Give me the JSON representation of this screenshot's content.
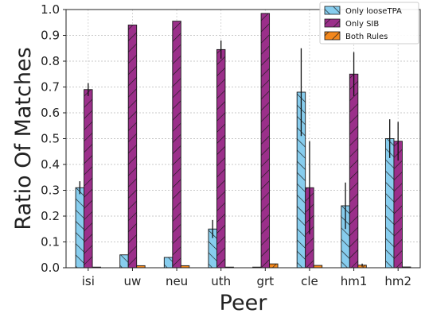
{
  "chart_data": {
    "type": "bar",
    "xlabel": "Peer",
    "ylabel": "Ratio Of Matches",
    "ylim": [
      0,
      1.0
    ],
    "yticks": [
      "0.0",
      "0.1",
      "0.2",
      "0.3",
      "0.4",
      "0.5",
      "0.6",
      "0.7",
      "0.8",
      "0.9",
      "1.0"
    ],
    "grid": true,
    "legend_position": "top-right",
    "categories": [
      "isi",
      "uw",
      "neu",
      "uth",
      "grt",
      "cle",
      "hm1",
      "hm2"
    ],
    "series": [
      {
        "name": "Only looseTPA",
        "color": "#87cdee",
        "hatch": "//",
        "values": [
          0.31,
          0.05,
          0.04,
          0.15,
          0.0,
          0.68,
          0.24,
          0.5
        ],
        "errors": [
          0.025,
          0.0,
          0.0,
          0.035,
          0.0,
          0.17,
          0.09,
          0.075
        ]
      },
      {
        "name": "Only SIB",
        "color": "#9b2f8a",
        "hatch": "\\\\",
        "values": [
          0.69,
          0.94,
          0.955,
          0.845,
          0.985,
          0.31,
          0.75,
          0.49
        ],
        "errors": [
          0.025,
          0.0,
          0.0,
          0.035,
          0.0,
          0.18,
          0.085,
          0.075
        ]
      },
      {
        "name": "Both Rules",
        "color": "#f4881c",
        "hatch": "\\\\",
        "values": [
          0.002,
          0.008,
          0.008,
          0.002,
          0.015,
          0.009,
          0.01,
          0.003
        ],
        "errors": [
          0.0,
          0.0,
          0.0,
          0.0,
          0.0,
          0.0,
          0.006,
          0.0
        ]
      }
    ]
  }
}
